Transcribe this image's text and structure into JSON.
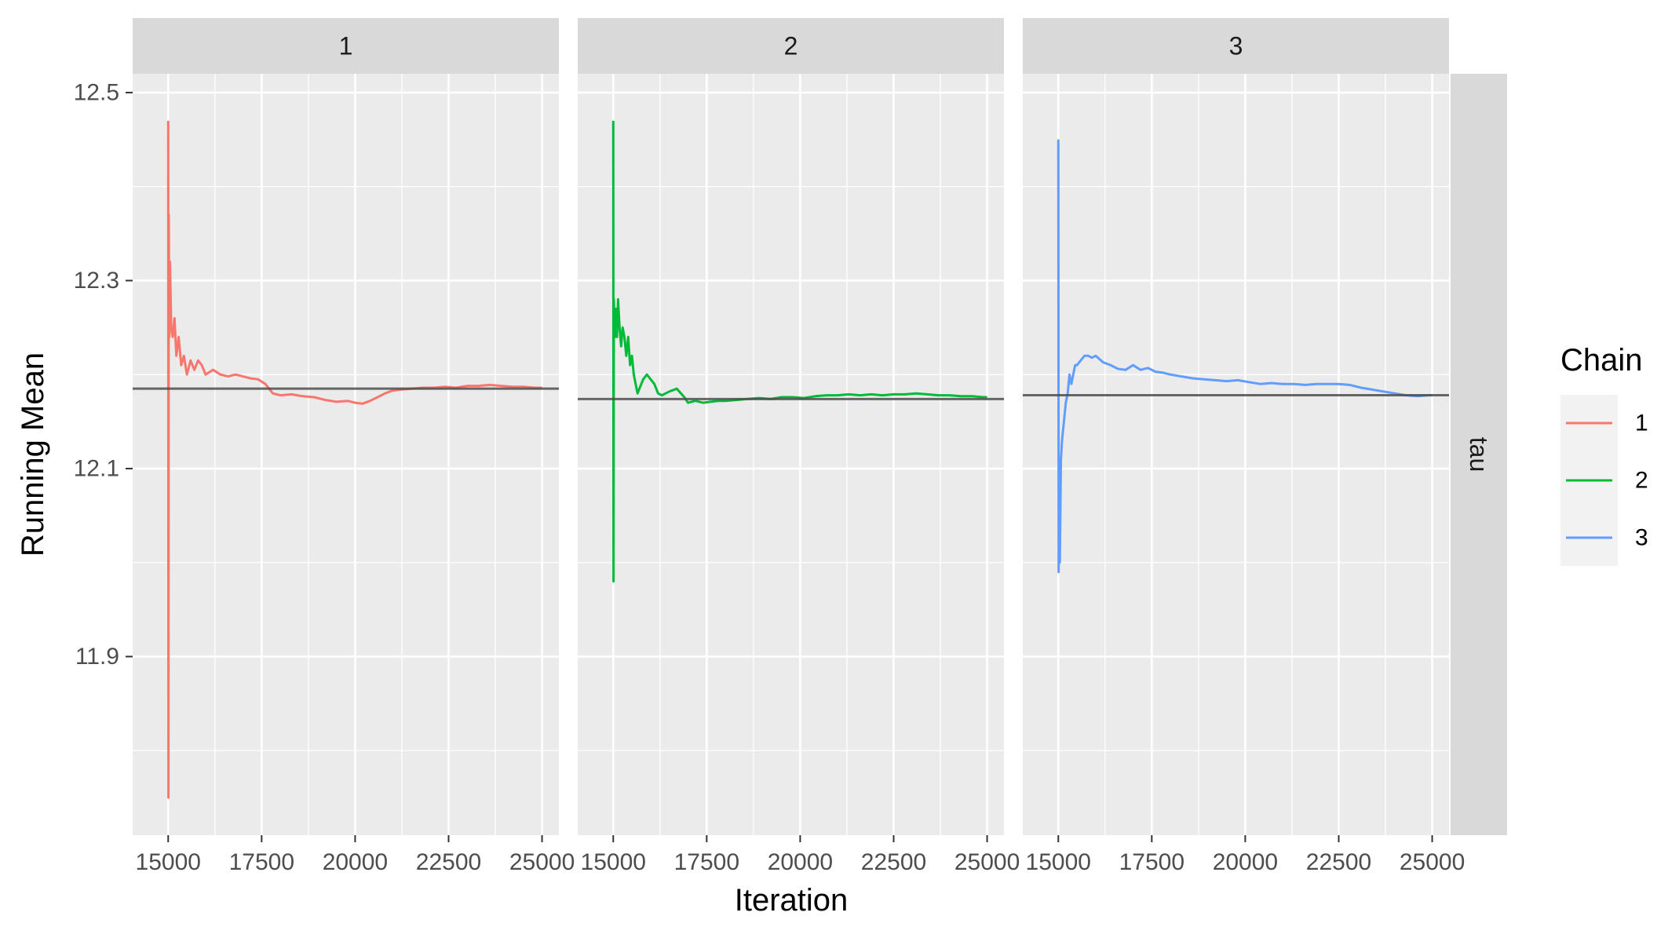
{
  "chart_data": {
    "type": "line",
    "xlabel": "Iteration",
    "ylabel": "Running Mean",
    "row_strip": "tau",
    "xlim": [
      14050,
      25450
    ],
    "ylim": [
      11.71,
      12.52
    ],
    "x_ticks": [
      15000,
      17500,
      20000,
      22500,
      25000
    ],
    "x_tick_labels": [
      "15000",
      "17500",
      "20000",
      "22500",
      "25000"
    ],
    "y_ticks": [
      11.9,
      12.1,
      12.3,
      12.5
    ],
    "y_tick_labels": [
      "11.9",
      "12.1",
      "12.3",
      "12.5"
    ],
    "grid": true,
    "legend": {
      "title": "Chain",
      "position": "right",
      "entries": [
        {
          "label": "1",
          "color": "#F8766D"
        },
        {
          "label": "2",
          "color": "#00BA38"
        },
        {
          "label": "3",
          "color": "#619CFF"
        }
      ]
    },
    "panels": [
      {
        "strip": "1",
        "color": "#F8766D",
        "reference_mean": 12.185,
        "series": [
          [
            15001,
            12.47
          ],
          [
            15008,
            11.75
          ],
          [
            15015,
            12.37
          ],
          [
            15030,
            12.24
          ],
          [
            15050,
            12.32
          ],
          [
            15080,
            12.25
          ],
          [
            15120,
            12.24
          ],
          [
            15170,
            12.26
          ],
          [
            15220,
            12.22
          ],
          [
            15280,
            12.24
          ],
          [
            15350,
            12.21
          ],
          [
            15420,
            12.22
          ],
          [
            15500,
            12.2
          ],
          [
            15600,
            12.215
          ],
          [
            15700,
            12.205
          ],
          [
            15800,
            12.215
          ],
          [
            15900,
            12.21
          ],
          [
            16000,
            12.2
          ],
          [
            16200,
            12.205
          ],
          [
            16400,
            12.2
          ],
          [
            16600,
            12.198
          ],
          [
            16800,
            12.2
          ],
          [
            17000,
            12.198
          ],
          [
            17200,
            12.196
          ],
          [
            17400,
            12.195
          ],
          [
            17600,
            12.19
          ],
          [
            17800,
            12.18
          ],
          [
            18000,
            12.178
          ],
          [
            18300,
            12.179
          ],
          [
            18600,
            12.177
          ],
          [
            18900,
            12.176
          ],
          [
            19200,
            12.173
          ],
          [
            19500,
            12.171
          ],
          [
            19800,
            12.172
          ],
          [
            20000,
            12.17
          ],
          [
            20200,
            12.169
          ],
          [
            20400,
            12.172
          ],
          [
            20600,
            12.176
          ],
          [
            20800,
            12.18
          ],
          [
            21000,
            12.183
          ],
          [
            21200,
            12.184
          ],
          [
            21500,
            12.185
          ],
          [
            21800,
            12.186
          ],
          [
            22100,
            12.186
          ],
          [
            22400,
            12.187
          ],
          [
            22700,
            12.186
          ],
          [
            23000,
            12.188
          ],
          [
            23300,
            12.188
          ],
          [
            23600,
            12.189
          ],
          [
            23900,
            12.188
          ],
          [
            24200,
            12.187
          ],
          [
            24500,
            12.187
          ],
          [
            24800,
            12.186
          ],
          [
            25000,
            12.186
          ]
        ]
      },
      {
        "strip": "2",
        "color": "#00BA38",
        "reference_mean": 12.174,
        "series": [
          [
            15001,
            12.47
          ],
          [
            15008,
            11.98
          ],
          [
            15015,
            12.28
          ],
          [
            15040,
            12.24
          ],
          [
            15070,
            12.27
          ],
          [
            15100,
            12.24
          ],
          [
            15130,
            12.28
          ],
          [
            15170,
            12.25
          ],
          [
            15210,
            12.23
          ],
          [
            15250,
            12.25
          ],
          [
            15300,
            12.24
          ],
          [
            15350,
            12.22
          ],
          [
            15400,
            12.24
          ],
          [
            15450,
            12.21
          ],
          [
            15500,
            12.22
          ],
          [
            15550,
            12.2
          ],
          [
            15600,
            12.19
          ],
          [
            15650,
            12.18
          ],
          [
            15700,
            12.185
          ],
          [
            15800,
            12.195
          ],
          [
            15900,
            12.2
          ],
          [
            16000,
            12.195
          ],
          [
            16100,
            12.19
          ],
          [
            16200,
            12.18
          ],
          [
            16300,
            12.178
          ],
          [
            16500,
            12.182
          ],
          [
            16700,
            12.185
          ],
          [
            16900,
            12.176
          ],
          [
            17000,
            12.17
          ],
          [
            17200,
            12.172
          ],
          [
            17400,
            12.17
          ],
          [
            17600,
            12.171
          ],
          [
            17800,
            12.172
          ],
          [
            18000,
            12.172
          ],
          [
            18300,
            12.173
          ],
          [
            18600,
            12.174
          ],
          [
            18900,
            12.175
          ],
          [
            19200,
            12.174
          ],
          [
            19500,
            12.176
          ],
          [
            19800,
            12.176
          ],
          [
            20100,
            12.175
          ],
          [
            20400,
            12.177
          ],
          [
            20700,
            12.178
          ],
          [
            21000,
            12.178
          ],
          [
            21300,
            12.179
          ],
          [
            21600,
            12.178
          ],
          [
            21900,
            12.179
          ],
          [
            22200,
            12.178
          ],
          [
            22500,
            12.179
          ],
          [
            22800,
            12.179
          ],
          [
            23100,
            12.18
          ],
          [
            23400,
            12.179
          ],
          [
            23700,
            12.178
          ],
          [
            24000,
            12.178
          ],
          [
            24300,
            12.177
          ],
          [
            24600,
            12.177
          ],
          [
            24900,
            12.176
          ],
          [
            25000,
            12.176
          ]
        ]
      },
      {
        "strip": "3",
        "color": "#619CFF",
        "reference_mean": 12.178,
        "series": [
          [
            15001,
            12.45
          ],
          [
            15010,
            11.99
          ],
          [
            15020,
            12.09
          ],
          [
            15040,
            12.0
          ],
          [
            15070,
            12.11
          ],
          [
            15100,
            12.13
          ],
          [
            15150,
            12.15
          ],
          [
            15200,
            12.17
          ],
          [
            15250,
            12.18
          ],
          [
            15300,
            12.2
          ],
          [
            15350,
            12.19
          ],
          [
            15400,
            12.2
          ],
          [
            15450,
            12.21
          ],
          [
            15500,
            12.21
          ],
          [
            15600,
            12.215
          ],
          [
            15700,
            12.22
          ],
          [
            15800,
            12.22
          ],
          [
            15900,
            12.218
          ],
          [
            16000,
            12.22
          ],
          [
            16200,
            12.213
          ],
          [
            16400,
            12.21
          ],
          [
            16600,
            12.206
          ],
          [
            16800,
            12.205
          ],
          [
            17000,
            12.21
          ],
          [
            17200,
            12.205
          ],
          [
            17400,
            12.207
          ],
          [
            17600,
            12.203
          ],
          [
            17800,
            12.202
          ],
          [
            18000,
            12.2
          ],
          [
            18300,
            12.198
          ],
          [
            18600,
            12.196
          ],
          [
            18900,
            12.195
          ],
          [
            19200,
            12.194
          ],
          [
            19500,
            12.193
          ],
          [
            19800,
            12.194
          ],
          [
            20100,
            12.192
          ],
          [
            20400,
            12.19
          ],
          [
            20700,
            12.191
          ],
          [
            21000,
            12.19
          ],
          [
            21300,
            12.19
          ],
          [
            21600,
            12.189
          ],
          [
            21900,
            12.19
          ],
          [
            22200,
            12.19
          ],
          [
            22500,
            12.19
          ],
          [
            22800,
            12.189
          ],
          [
            23100,
            12.186
          ],
          [
            23400,
            12.184
          ],
          [
            23700,
            12.182
          ],
          [
            24000,
            12.18
          ],
          [
            24300,
            12.178
          ],
          [
            24600,
            12.177
          ],
          [
            24900,
            12.178
          ],
          [
            25000,
            12.178
          ]
        ]
      }
    ]
  }
}
